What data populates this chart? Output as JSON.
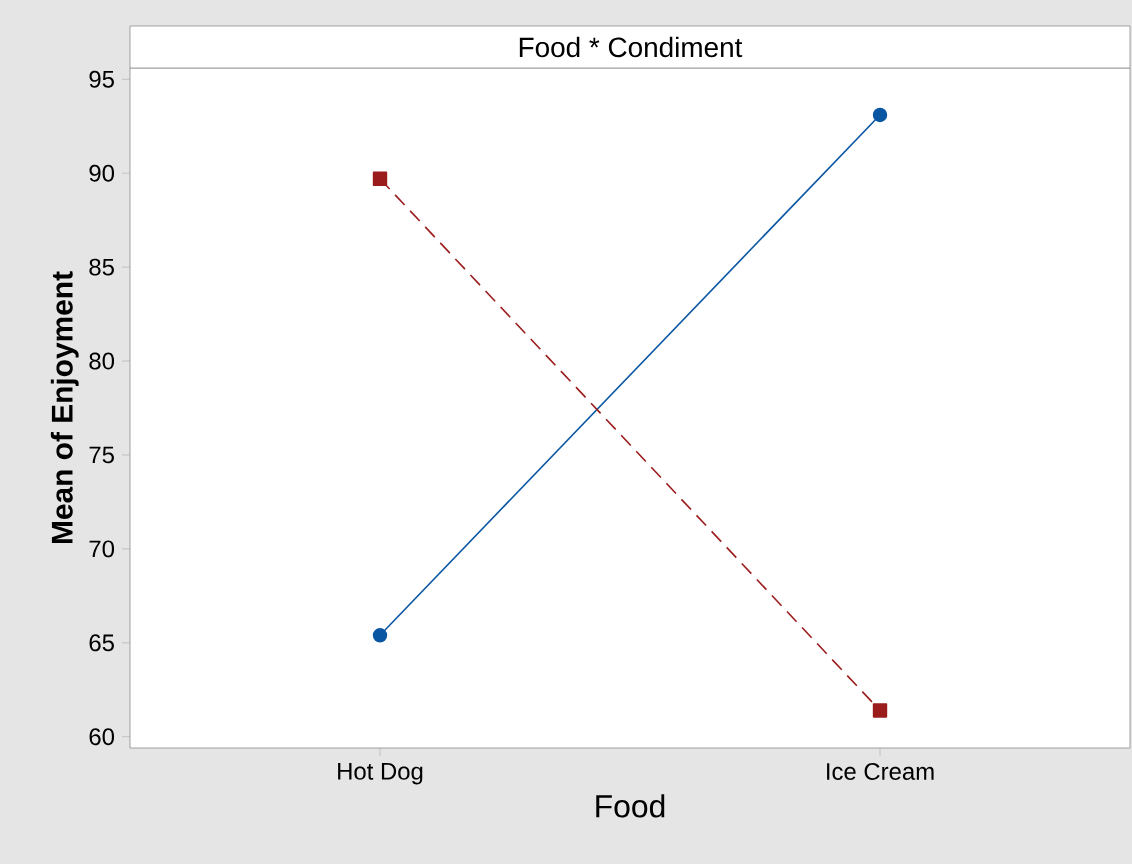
{
  "chart_data": {
    "type": "line",
    "title": "Food * Condiment",
    "xlabel": "Food",
    "ylabel": "Mean of Enjoyment",
    "categories": [
      "Hot Dog",
      "Ice Cream"
    ],
    "series": [
      {
        "color": "#0a56a3",
        "values": [
          65.4,
          93.1
        ],
        "marker": "circle",
        "line_style": "solid"
      },
      {
        "color": "#9b1c1c",
        "values": [
          89.7,
          61.4
        ],
        "marker": "square",
        "line_style": "dashed"
      }
    ],
    "ylim": [
      59.4,
      95.6
    ],
    "yticks": [
      60,
      65,
      70,
      75,
      80,
      85,
      90,
      95
    ]
  }
}
